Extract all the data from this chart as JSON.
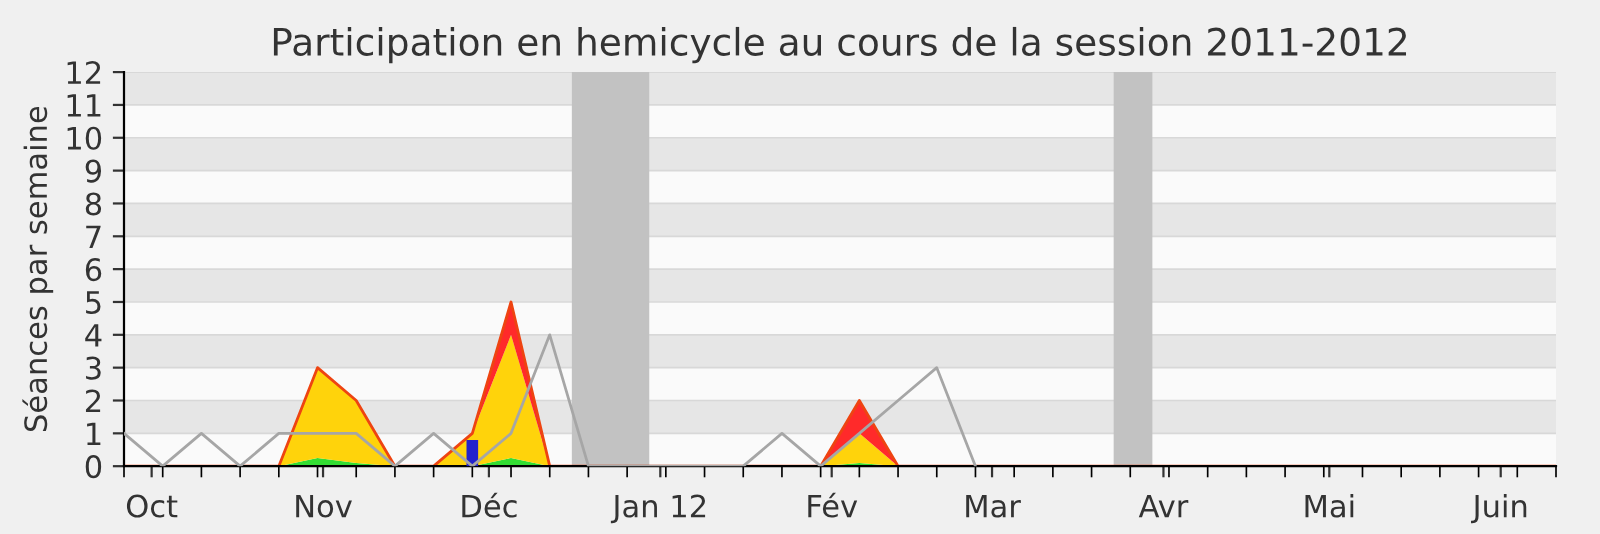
{
  "chart_data": {
    "type": "area",
    "title": "Participation en hemicycle au cours de la session 2011-2012",
    "ylabel": "Séances par semaine",
    "x": [
      "2011-09-26",
      "2011-10-03",
      "2011-10-10",
      "2011-10-17",
      "2011-10-24",
      "2011-10-31",
      "2011-11-07",
      "2011-11-14",
      "2011-11-21",
      "2011-11-28",
      "2011-12-05",
      "2011-12-12",
      "2011-12-19",
      "2011-12-26",
      "2012-01-02",
      "2012-01-09",
      "2012-01-16",
      "2012-01-23",
      "2012-01-30",
      "2012-02-06",
      "2012-02-13",
      "2012-02-20",
      "2012-02-27",
      "2012-03-05",
      "2012-03-12",
      "2012-03-19",
      "2012-03-26",
      "2012-04-02",
      "2012-04-09",
      "2012-04-16",
      "2012-04-23",
      "2012-04-30",
      "2012-05-07",
      "2012-05-14",
      "2012-05-21",
      "2012-05-28",
      "2012-06-04",
      "2012-06-11"
    ],
    "stacked": true,
    "series": [
      {
        "color": "#33dd33",
        "values": [
          0,
          0,
          0,
          0,
          0,
          0.25,
          0.1,
          0,
          0,
          0,
          0.25,
          0,
          0,
          0,
          0,
          0,
          0,
          0,
          0,
          0.1,
          0,
          0,
          0,
          0,
          0,
          0,
          0,
          0,
          0,
          0,
          0,
          0,
          0,
          0,
          0,
          0,
          0,
          0
        ]
      },
      {
        "color": "#ffd30b",
        "values": [
          0,
          0,
          0,
          0,
          0,
          2.75,
          1.9,
          0,
          0,
          1,
          3.75,
          0,
          0,
          0,
          0,
          0,
          0,
          0,
          0,
          0.9,
          0,
          0,
          0,
          0,
          0,
          0,
          0,
          0,
          0,
          0,
          0,
          0,
          0,
          0,
          0,
          0,
          0,
          0
        ]
      },
      {
        "color": "#ff2a2a",
        "values": [
          0,
          0,
          0,
          0,
          0,
          0,
          0,
          0,
          0,
          0,
          1,
          0,
          0,
          0,
          0,
          0,
          0,
          0,
          0,
          1,
          0,
          0,
          0,
          0,
          0,
          0,
          0,
          0,
          0,
          0,
          0,
          0,
          0,
          0,
          0,
          0,
          0,
          0
        ]
      },
      {
        "type": "line",
        "color": "#a6a6a6",
        "values": [
          1,
          0,
          1,
          0,
          1,
          1,
          1,
          0,
          1,
          0,
          1,
          4,
          0,
          0,
          0,
          0,
          0,
          1,
          0,
          1,
          2,
          3,
          0,
          null,
          null,
          null,
          null,
          null,
          null,
          null,
          null,
          null,
          null,
          null,
          null,
          null,
          null,
          null
        ]
      },
      {
        "type": "bar",
        "color": "#2222cc",
        "x": [
          "2011-11-28"
        ],
        "values": [
          0.8
        ]
      }
    ],
    "xlim": [
      "2011-09-26",
      "2012-06-11"
    ],
    "ylim": [
      0,
      12
    ],
    "xticks": [
      {
        "value": "2011-09-26",
        "label": null
      },
      {
        "value": "2011-10-01",
        "label": "Oct"
      },
      {
        "value": "2011-10-03",
        "label": null
      },
      {
        "value": "2011-10-10",
        "label": null
      },
      {
        "value": "2011-10-17",
        "label": null
      },
      {
        "value": "2011-10-24",
        "label": null
      },
      {
        "value": "2011-10-31",
        "label": null
      },
      {
        "value": "2011-11-01",
        "label": "Nov"
      },
      {
        "value": "2011-11-07",
        "label": null
      },
      {
        "value": "2011-11-14",
        "label": null
      },
      {
        "value": "2011-11-21",
        "label": null
      },
      {
        "value": "2011-11-28",
        "label": null
      },
      {
        "value": "2011-12-01",
        "label": "Déc"
      },
      {
        "value": "2011-12-05",
        "label": null
      },
      {
        "value": "2011-12-12",
        "label": null
      },
      {
        "value": "2011-12-19",
        "label": null
      },
      {
        "value": "2011-12-26",
        "label": null
      },
      {
        "value": "2012-01-01",
        "label": "Jan 12"
      },
      {
        "value": "2012-01-02",
        "label": null
      },
      {
        "value": "2012-01-09",
        "label": null
      },
      {
        "value": "2012-01-16",
        "label": null
      },
      {
        "value": "2012-01-23",
        "label": null
      },
      {
        "value": "2012-01-30",
        "label": null
      },
      {
        "value": "2012-02-01",
        "label": "Fév"
      },
      {
        "value": "2012-02-06",
        "label": null
      },
      {
        "value": "2012-02-13",
        "label": null
      },
      {
        "value": "2012-02-20",
        "label": null
      },
      {
        "value": "2012-02-27",
        "label": null
      },
      {
        "value": "2012-03-01",
        "label": "Mar"
      },
      {
        "value": "2012-03-05",
        "label": null
      },
      {
        "value": "2012-03-12",
        "label": null
      },
      {
        "value": "2012-03-19",
        "label": null
      },
      {
        "value": "2012-03-26",
        "label": null
      },
      {
        "value": "2012-04-01",
        "label": "Avr"
      },
      {
        "value": "2012-04-02",
        "label": null
      },
      {
        "value": "2012-04-09",
        "label": null
      },
      {
        "value": "2012-04-16",
        "label": null
      },
      {
        "value": "2012-04-23",
        "label": null
      },
      {
        "value": "2012-04-30",
        "label": null
      },
      {
        "value": "2012-05-01",
        "label": "Mai"
      },
      {
        "value": "2012-05-07",
        "label": null
      },
      {
        "value": "2012-05-14",
        "label": null
      },
      {
        "value": "2012-05-21",
        "label": null
      },
      {
        "value": "2012-05-28",
        "label": null
      },
      {
        "value": "2012-06-01",
        "label": "Juin"
      },
      {
        "value": "2012-06-04",
        "label": null
      },
      {
        "value": "2012-06-11",
        "label": null
      }
    ],
    "yticks": [
      0,
      1,
      2,
      3,
      4,
      5,
      6,
      7,
      8,
      9,
      10,
      11,
      12
    ],
    "grid": "y",
    "bands": [
      {
        "axis": "x",
        "from": "2011-12-16",
        "to": "2011-12-30",
        "color": "#c2c2c2"
      },
      {
        "axis": "x",
        "from": "2012-03-23",
        "to": "2012-03-30",
        "color": "#c2c2c2"
      }
    ]
  }
}
